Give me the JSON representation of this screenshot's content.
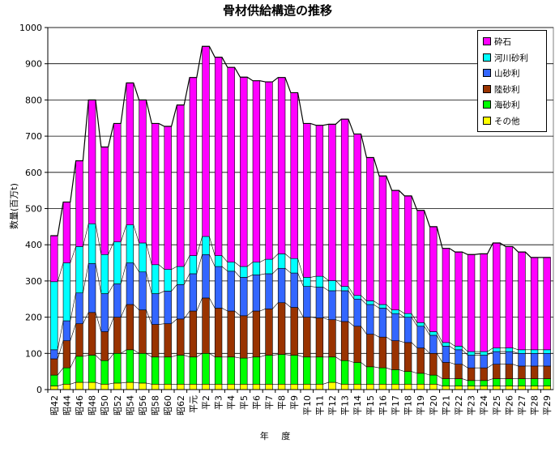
{
  "chart_data": {
    "type": "bar",
    "stacked": true,
    "title": "骨材供給構造の推移",
    "xlabel": "年 度",
    "ylabel": "数量(百万t)",
    "ylim": [
      0,
      1000
    ],
    "yticks": [
      0,
      100,
      200,
      300,
      400,
      500,
      600,
      700,
      800,
      900,
      1000
    ],
    "grid": true,
    "legend_position": "top-right",
    "total_line": true,
    "categories": [
      "昭42",
      "昭44",
      "昭46",
      "昭48",
      "昭50",
      "昭52",
      "昭54",
      "昭56",
      "昭58",
      "昭60",
      "昭62",
      "平元",
      "平2",
      "平3",
      "平4",
      "平5",
      "平6",
      "平7",
      "平8",
      "平9",
      "平10",
      "平11",
      "平12",
      "平13",
      "平14",
      "平15",
      "平16",
      "平17",
      "平18",
      "平19",
      "平20",
      "平21",
      "平22",
      "平23",
      "平24",
      "平25",
      "平26",
      "平27",
      "平28",
      "平29"
    ],
    "series": [
      {
        "name": "その他",
        "color": "#ffff00",
        "values": [
          10,
          15,
          20,
          20,
          15,
          18,
          20,
          18,
          15,
          15,
          15,
          15,
          15,
          15,
          15,
          15,
          15,
          15,
          15,
          15,
          15,
          15,
          20,
          15,
          15,
          15,
          15,
          15,
          15,
          15,
          15,
          10,
          10,
          10,
          10,
          10,
          10,
          10,
          10,
          10
        ]
      },
      {
        "name": "海砂利",
        "color": "#00ff00",
        "values": [
          30,
          45,
          72,
          75,
          65,
          82,
          90,
          82,
          75,
          75,
          80,
          75,
          85,
          75,
          75,
          72,
          75,
          80,
          82,
          80,
          75,
          75,
          70,
          65,
          60,
          48,
          45,
          40,
          35,
          30,
          25,
          20,
          20,
          15,
          15,
          20,
          20,
          20,
          20,
          20
        ]
      },
      {
        "name": "陸砂利",
        "color": "#993300",
        "values": [
          45,
          75,
          90,
          118,
          80,
          100,
          125,
          120,
          90,
          92,
          100,
          127,
          153,
          135,
          127,
          117,
          127,
          128,
          143,
          132,
          110,
          108,
          103,
          108,
          100,
          90,
          85,
          80,
          80,
          70,
          60,
          45,
          40,
          35,
          35,
          40,
          40,
          35,
          35,
          35
        ]
      },
      {
        "name": "山砂利",
        "color": "#3366ff",
        "values": [
          25,
          55,
          85,
          135,
          105,
          92,
          115,
          105,
          85,
          90,
          95,
          103,
          120,
          115,
          110,
          106,
          100,
          97,
          95,
          95,
          85,
          85,
          80,
          85,
          75,
          82,
          80,
          75,
          70,
          60,
          50,
          45,
          40,
          35,
          35,
          35,
          35,
          35,
          35,
          35
        ]
      },
      {
        "name": "河川砂利",
        "color": "#00ffff",
        "values": [
          188,
          160,
          128,
          110,
          108,
          116,
          105,
          80,
          80,
          60,
          50,
          50,
          50,
          30,
          25,
          30,
          35,
          40,
          40,
          40,
          25,
          30,
          28,
          12,
          10,
          10,
          10,
          10,
          10,
          10,
          10,
          10,
          10,
          10,
          10,
          10,
          10,
          10,
          10,
          10
        ]
      },
      {
        "name": "砕石",
        "color": "#ff00ff",
        "values": [
          127,
          168,
          237,
          342,
          297,
          327,
          392,
          395,
          390,
          395,
          446,
          492,
          525,
          548,
          538,
          523,
          501,
          490,
          487,
          458,
          425,
          417,
          432,
          462,
          446,
          396,
          355,
          330,
          325,
          310,
          290,
          260,
          260,
          268,
          270,
          290,
          280,
          270,
          255,
          255
        ]
      }
    ]
  }
}
